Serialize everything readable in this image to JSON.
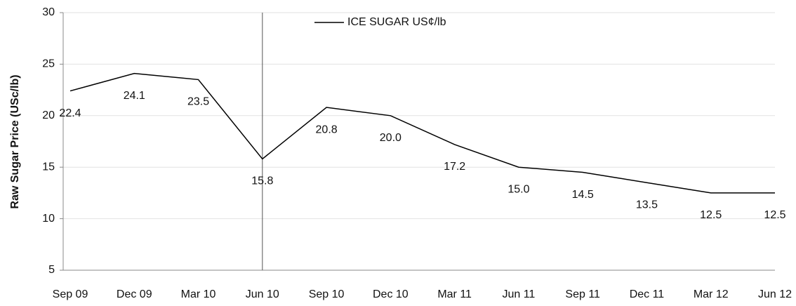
{
  "chart_data": {
    "type": "line",
    "y_label": "Raw Sugar Price (USc/lb)",
    "categories": [
      "Sep 09",
      "Dec 09",
      "Mar 10",
      "Jun 10",
      "Sep 10",
      "Dec 10",
      "Mar 11",
      "Jun 11",
      "Sep 11",
      "Dec 11",
      "Mar 12",
      "Jun 12"
    ],
    "series": [
      {
        "name": "ICE SUGAR US¢/lb",
        "color": "#000000",
        "values": [
          22.4,
          24.1,
          23.5,
          15.8,
          20.8,
          20.0,
          17.2,
          15.0,
          14.5,
          13.5,
          12.5,
          12.5
        ],
        "value_labels": [
          "22.4",
          "24.1",
          "23.5",
          "15.8",
          "20.8",
          "20.0",
          "17.2",
          "15.0",
          "14.5",
          "13.5",
          "12.5",
          "12.5"
        ]
      }
    ],
    "vline": "Jun 10",
    "ylim": [
      5,
      30
    ],
    "yticks": [
      5,
      10,
      15,
      20,
      25,
      30
    ],
    "grid": true,
    "legend": "top"
  }
}
